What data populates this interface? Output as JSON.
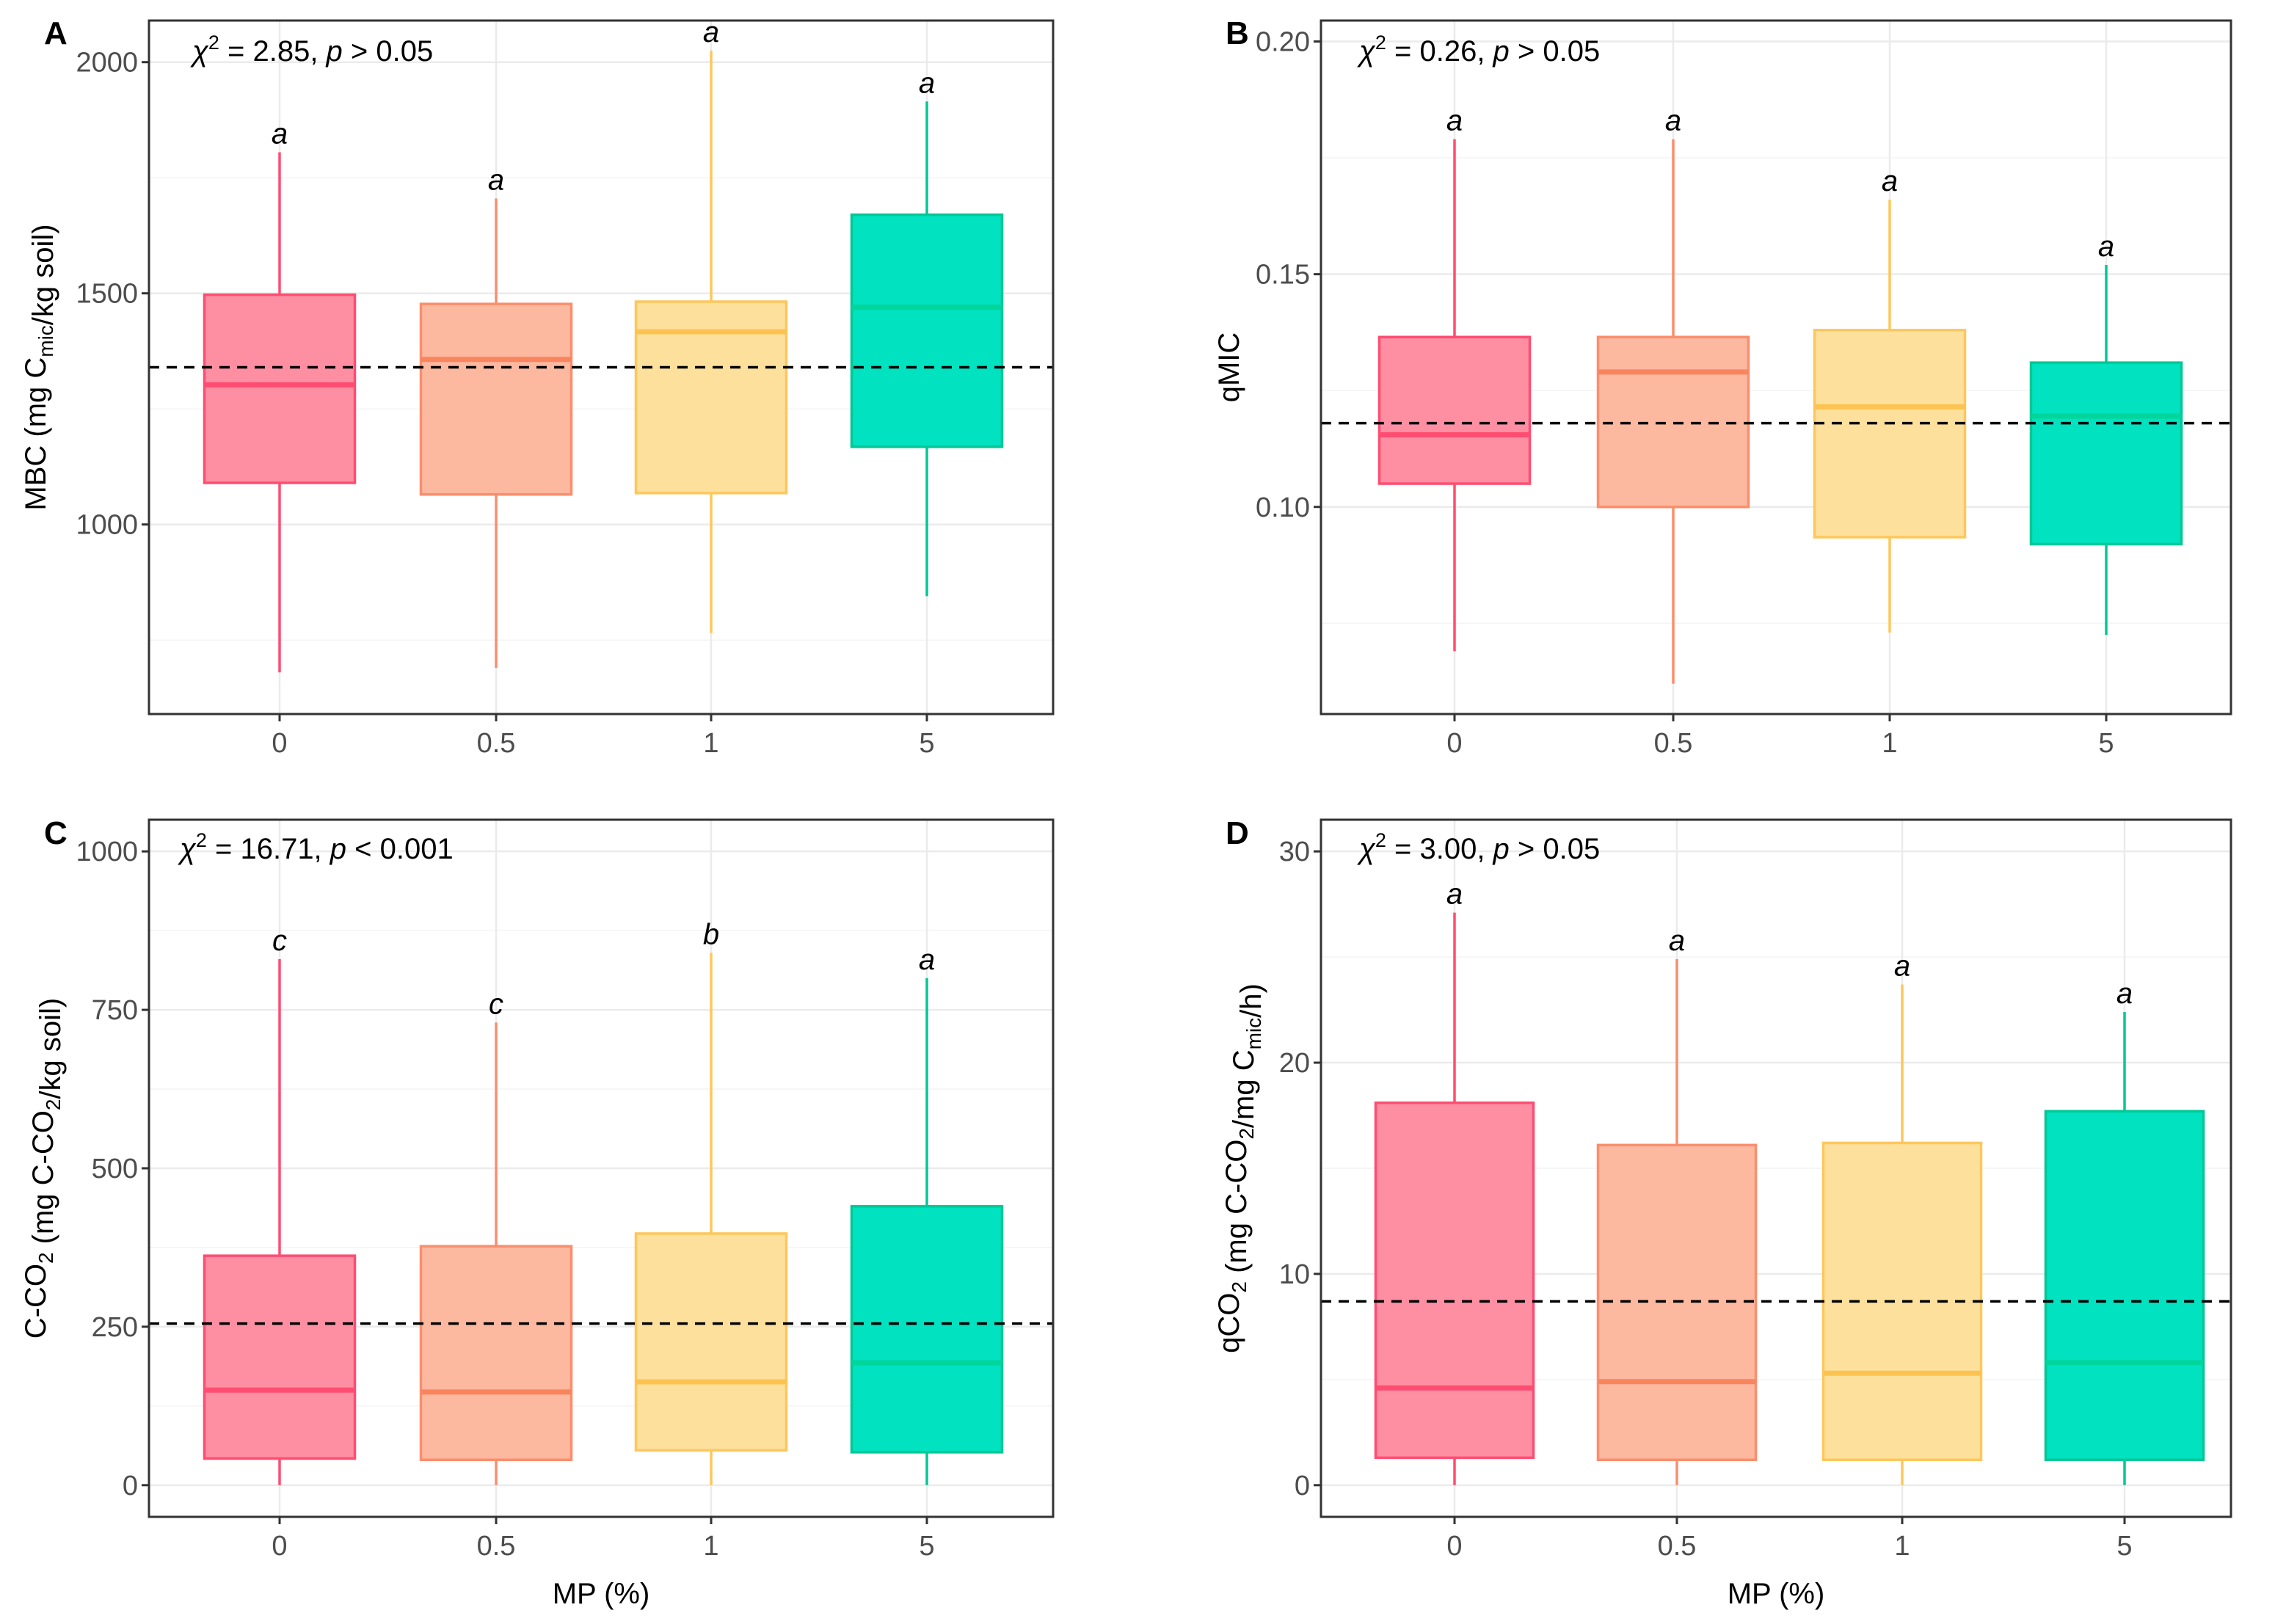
{
  "chart_data": [
    {
      "type": "box",
      "panel_label": "A",
      "ylabel": {
        "prefix": "MBC (mg C",
        "sub": "mic",
        "suffix": "/kg soil)"
      },
      "xlabel": "",
      "ylim": [
        590,
        2090
      ],
      "yticks": [
        1000,
        1500,
        2000
      ],
      "yminor": [
        750,
        1250,
        1750
      ],
      "reference_line": 1340,
      "stat": {
        "chi": "χ",
        "sup": "2",
        "val": " = 2.85, ",
        "p": "p",
        "rest": " > 0.05"
      },
      "categories": [
        "0",
        "0.5",
        "1",
        "5"
      ],
      "boxes": [
        {
          "whisker_low": 680,
          "q1": 1090,
          "median": 1302,
          "q3": 1497,
          "whisker_high": 1805,
          "letter": "a"
        },
        {
          "whisker_low": 690,
          "q1": 1065,
          "median": 1357,
          "q3": 1477,
          "whisker_high": 1705,
          "letter": "a"
        },
        {
          "whisker_low": 765,
          "q1": 1068,
          "median": 1417,
          "q3": 1482,
          "whisker_high": 2025,
          "letter": "a"
        },
        {
          "whisker_low": 845,
          "q1": 1168,
          "median": 1470,
          "q3": 1670,
          "whisker_high": 1915,
          "letter": "a"
        }
      ]
    },
    {
      "type": "box",
      "panel_label": "B",
      "ylabel": {
        "prefix": "qMIC",
        "sub": "",
        "suffix": ""
      },
      "xlabel": "",
      "ylim": [
        0.0555,
        0.2045
      ],
      "yticks": [
        0.1,
        0.15,
        0.2
      ],
      "yminor": [
        0.075,
        0.125,
        0.175
      ],
      "ytick_labels": [
        "0.10",
        "0.15",
        "0.20"
      ],
      "reference_line": 0.118,
      "stat": {
        "chi": "χ",
        "sup": "2",
        "val": " = 0.26, ",
        "p": "p",
        "rest": " > 0.05"
      },
      "categories": [
        "0",
        "0.5",
        "1",
        "5"
      ],
      "boxes": [
        {
          "whisker_low": 0.069,
          "q1": 0.105,
          "median": 0.1155,
          "q3": 0.1365,
          "whisker_high": 0.179,
          "letter": "a"
        },
        {
          "whisker_low": 0.062,
          "q1": 0.1,
          "median": 0.129,
          "q3": 0.1365,
          "whisker_high": 0.179,
          "letter": "a"
        },
        {
          "whisker_low": 0.073,
          "q1": 0.0935,
          "median": 0.1215,
          "q3": 0.138,
          "whisker_high": 0.166,
          "letter": "a"
        },
        {
          "whisker_low": 0.0725,
          "q1": 0.092,
          "median": 0.1195,
          "q3": 0.131,
          "whisker_high": 0.152,
          "letter": "a"
        }
      ]
    },
    {
      "type": "box",
      "panel_label": "C",
      "ylabel": {
        "prefix": "C-CO",
        "sub": "2",
        "suffix": " (mg C-CO",
        "sub2": "2",
        "suffix2": "/kg soil)"
      },
      "xlabel": "MP (%)",
      "ylim": [
        -50,
        1050
      ],
      "yticks": [
        0,
        250,
        500,
        750,
        1000
      ],
      "yminor": [
        125,
        375,
        625,
        875
      ],
      "reference_line": 255,
      "stat": {
        "chi": "χ",
        "sup": "2",
        "val": " = 16.71, ",
        "p": "p",
        "rest": " < 0.001"
      },
      "categories": [
        "0",
        "0.5",
        "1",
        "5"
      ],
      "boxes": [
        {
          "whisker_low": 0,
          "q1": 42,
          "median": 150,
          "q3": 362,
          "whisker_high": 830,
          "letter": "c"
        },
        {
          "whisker_low": 0,
          "q1": 40,
          "median": 147,
          "q3": 377,
          "whisker_high": 730,
          "letter": "c"
        },
        {
          "whisker_low": 0,
          "q1": 55,
          "median": 163,
          "q3": 397,
          "whisker_high": 840,
          "letter": "b"
        },
        {
          "whisker_low": 0,
          "q1": 52,
          "median": 193,
          "q3": 440,
          "whisker_high": 800,
          "letter": "a"
        }
      ]
    },
    {
      "type": "box",
      "panel_label": "D",
      "ylabel": {
        "prefix": "qCO",
        "sub": "2",
        "suffix": " (mg C-CO",
        "sub2": "2",
        "suffix2": "/mg C",
        "sub3": "mic",
        "suffix3": "/h)"
      },
      "xlabel": "MP (%)",
      "ylim": [
        -1.5,
        31.5
      ],
      "yticks": [
        0,
        10,
        20,
        30
      ],
      "yminor": [
        5,
        15,
        25
      ],
      "reference_line": 8.7,
      "stat": {
        "chi": "χ",
        "sup": "2",
        "val": " = 3.00, ",
        "p": "p",
        "rest": " > 0.05"
      },
      "categories": [
        "0",
        "0.5",
        "1",
        "5"
      ],
      "boxes": [
        {
          "whisker_low": 0,
          "q1": 1.3,
          "median": 4.6,
          "q3": 18.1,
          "whisker_high": 27.1,
          "letter": "a"
        },
        {
          "whisker_low": 0,
          "q1": 1.2,
          "median": 4.9,
          "q3": 16.1,
          "whisker_high": 24.9,
          "letter": "a"
        },
        {
          "whisker_low": 0,
          "q1": 1.2,
          "median": 5.3,
          "q3": 16.2,
          "whisker_high": 23.7,
          "letter": "a"
        },
        {
          "whisker_low": 0,
          "q1": 1.2,
          "median": 5.8,
          "q3": 17.7,
          "whisker_high": 22.4,
          "letter": "a"
        }
      ]
    }
  ],
  "colors": {
    "fills": [
      "#fe8fa3",
      "#fdb8a0",
      "#fde09c",
      "#00e2c0"
    ],
    "strokes": [
      "#ff4d72",
      "#fb8e6c",
      "#fdc75c",
      "#00c896"
    ],
    "medians": [
      "#ff4d72",
      "#f9855e",
      "#fcc350",
      "#00d59b"
    ]
  }
}
